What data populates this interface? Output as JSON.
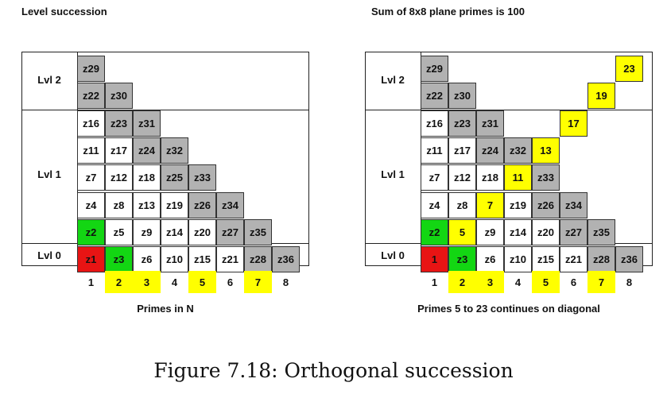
{
  "colors": {
    "gray": "#b2b2b2",
    "white": "#ffffff",
    "green": "#13d613",
    "red": "#e81414",
    "yellow": "#ffff00"
  },
  "panels": [
    {
      "title": "Level succession",
      "caption": "Primes in N",
      "levels": {
        "lvl2": "Lvl 2",
        "lvl1": "Lvl 1",
        "lvl0": "Lvl 0"
      },
      "x_labels": [
        {
          "text": "1",
          "hl": false
        },
        {
          "text": "2",
          "hl": true
        },
        {
          "text": "3",
          "hl": true
        },
        {
          "text": "4",
          "hl": false
        },
        {
          "text": "5",
          "hl": true
        },
        {
          "text": "6",
          "hl": false
        },
        {
          "text": "7",
          "hl": true
        },
        {
          "text": "8",
          "hl": false
        }
      ],
      "rows": [
        [
          "z29"
        ],
        [
          "z22",
          "z30"
        ],
        [
          "z16",
          "z23",
          "z31"
        ],
        [
          "z11",
          "z17",
          "z24",
          "z32"
        ],
        [
          "z7",
          "z12",
          "z18",
          "z25",
          "z33"
        ],
        [
          "z4",
          "z8",
          "z13",
          "z19",
          "z26",
          "z34"
        ],
        [
          "z2",
          "z5",
          "z9",
          "z14",
          "z20",
          "z27",
          "z35"
        ],
        [
          "z1",
          "z3",
          "z6",
          "z10",
          "z15",
          "z21",
          "z28",
          "z36"
        ]
      ],
      "colors_grid": [
        [
          "gray"
        ],
        [
          "gray",
          "gray"
        ],
        [
          "white",
          "gray",
          "gray"
        ],
        [
          "white",
          "white",
          "gray",
          "gray"
        ],
        [
          "white",
          "white",
          "white",
          "gray",
          "gray"
        ],
        [
          "white",
          "white",
          "white",
          "white",
          "gray",
          "gray"
        ],
        [
          "green",
          "white",
          "white",
          "white",
          "white",
          "gray",
          "gray"
        ],
        [
          "red",
          "green",
          "white",
          "white",
          "white",
          "white",
          "gray",
          "gray"
        ]
      ],
      "extras": []
    },
    {
      "title": "Sum of 8x8 plane primes is 100",
      "caption": "Primes 5 to 23 continues on diagonal",
      "levels": {
        "lvl2": "Lvl 2",
        "lvl1": "Lvl 1",
        "lvl0": "Lvl 0"
      },
      "x_labels": [
        {
          "text": "1",
          "hl": false
        },
        {
          "text": "2",
          "hl": true
        },
        {
          "text": "3",
          "hl": true
        },
        {
          "text": "4",
          "hl": false
        },
        {
          "text": "5",
          "hl": true
        },
        {
          "text": "6",
          "hl": false
        },
        {
          "text": "7",
          "hl": true
        },
        {
          "text": "8",
          "hl": false
        }
      ],
      "rows": [
        [
          "z29"
        ],
        [
          "z22",
          "z30"
        ],
        [
          "z16",
          "z23",
          "z31"
        ],
        [
          "z11",
          "z17",
          "z24",
          "z32",
          "13"
        ],
        [
          "z7",
          "z12",
          "z18",
          "11",
          "z33"
        ],
        [
          "z4",
          "z8",
          "7",
          "z19",
          "z26",
          "z34"
        ],
        [
          "z2",
          "5",
          "z9",
          "z14",
          "z20",
          "z27",
          "z35"
        ],
        [
          "1",
          "z3",
          "z6",
          "z10",
          "z15",
          "z21",
          "z28",
          "z36"
        ]
      ],
      "colors_grid": [
        [
          "gray"
        ],
        [
          "gray",
          "gray"
        ],
        [
          "white",
          "gray",
          "gray"
        ],
        [
          "white",
          "white",
          "gray",
          "gray",
          "yellow"
        ],
        [
          "white",
          "white",
          "white",
          "yellow",
          "gray"
        ],
        [
          "white",
          "white",
          "yellow",
          "white",
          "gray",
          "gray"
        ],
        [
          "green",
          "yellow",
          "white",
          "white",
          "white",
          "gray",
          "gray"
        ],
        [
          "red",
          "green",
          "white",
          "white",
          "white",
          "white",
          "gray",
          "gray"
        ]
      ],
      "extras": [
        {
          "row": 0,
          "col": 7,
          "text": "23",
          "color": "yellow"
        },
        {
          "row": 1,
          "col": 6,
          "text": "19",
          "color": "yellow"
        },
        {
          "row": 2,
          "col": 5,
          "text": "17",
          "color": "yellow"
        }
      ]
    }
  ],
  "figure_caption": "Figure 7.18: Orthogonal succession"
}
